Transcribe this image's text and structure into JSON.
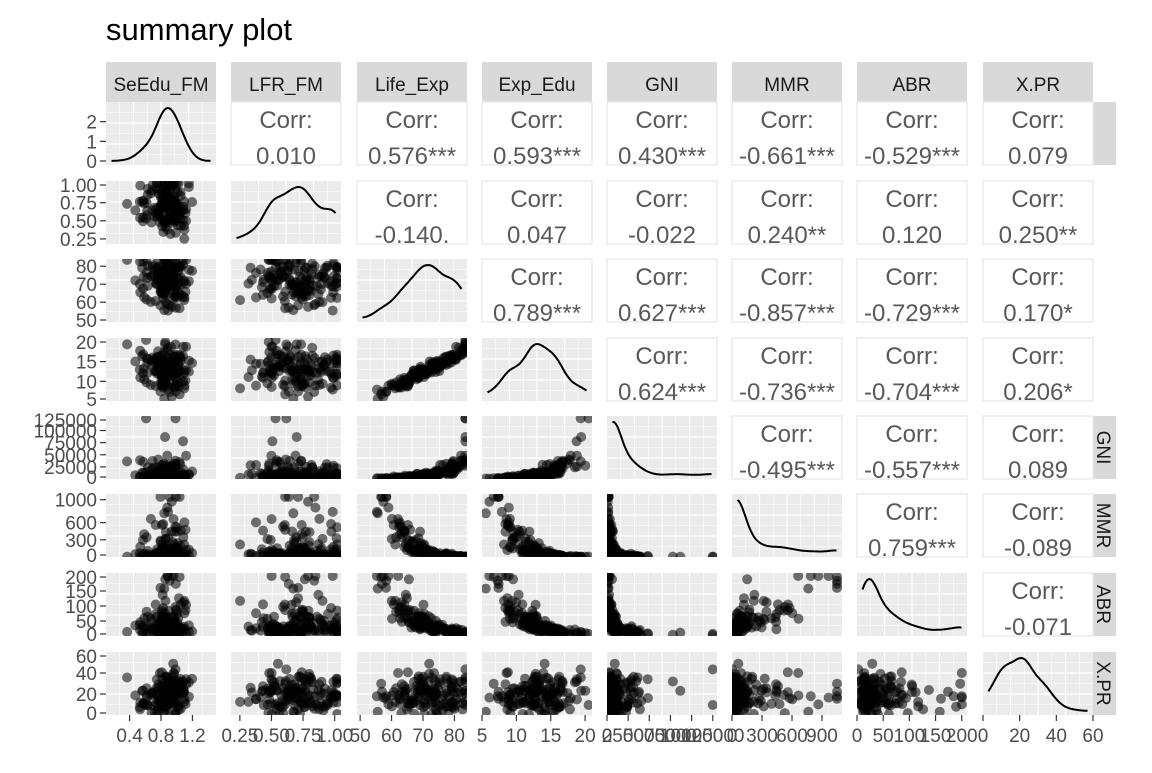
{
  "chart_data": {
    "type": "scatter-matrix",
    "title": "summary plot",
    "variables": [
      "SeEdu_FM",
      "LFR_FM",
      "Life_Exp",
      "Exp_Edu",
      "GNI",
      "MMR",
      "ABR",
      "X.PR"
    ],
    "row_strip_labels": [
      "SeEdu_FM",
      "LFR_FM",
      "Life_Exp",
      "Exp_Edu",
      "GNI",
      "MMR",
      "ABR",
      "X.PR"
    ],
    "correlation_label": "Corr:",
    "correlations": {
      "0_1": "0.010",
      "0_2": "0.576***",
      "0_3": "0.593***",
      "0_4": "0.430***",
      "0_5": "-0.661***",
      "0_6": "-0.529***",
      "0_7": "0.079",
      "1_2": "-0.140.",
      "1_3": "0.047",
      "1_4": "-0.022",
      "1_5": "0.240**",
      "1_6": "0.120",
      "1_7": "0.250**",
      "2_3": "0.789***",
      "2_4": "0.627***",
      "2_5": "-0.857***",
      "2_6": "-0.729***",
      "2_7": "0.170*",
      "3_4": "0.624***",
      "3_5": "-0.736***",
      "3_6": "-0.704***",
      "3_7": "0.206*",
      "4_5": "-0.495***",
      "4_6": "-0.557***",
      "4_7": "0.089",
      "5_6": "0.759***",
      "5_7": "-0.089",
      "6_7": "-0.071"
    },
    "y_ticks": [
      [
        "2",
        "1",
        "0"
      ],
      [
        "1.00",
        "0.75",
        "0.50",
        "0.25"
      ],
      [
        "80",
        "70",
        "60",
        "50"
      ],
      [
        "20",
        "15",
        "10",
        "5"
      ],
      [
        "125000",
        "100000",
        "75000",
        "50000",
        "25000",
        "0"
      ],
      [
        "1000",
        "600",
        "300",
        "0"
      ],
      [
        "200",
        "150",
        "100",
        "50",
        "0"
      ],
      [
        "60",
        "40",
        "20",
        "0"
      ]
    ],
    "x_ticks": [
      [
        "0.4",
        "0.8",
        "1.2"
      ],
      [
        "0.25",
        "0.50",
        "0.75",
        "1.00"
      ],
      [
        "50",
        "60",
        "70",
        "80"
      ],
      [
        "5",
        "10",
        "15",
        "20"
      ],
      [
        "0",
        "25000",
        "50000",
        "75000",
        "100000",
        "125000"
      ],
      [
        "0",
        "300",
        "600",
        "900"
      ],
      [
        "0",
        "50",
        "100",
        "150",
        "200"
      ],
      [
        "0",
        "20",
        "40",
        "60"
      ]
    ],
    "ranges": [
      [
        0.1,
        1.5
      ],
      [
        0.18,
        1.05
      ],
      [
        49,
        84
      ],
      [
        5,
        21
      ],
      [
        0,
        130000
      ],
      [
        0,
        1100
      ],
      [
        0,
        210
      ],
      [
        0,
        60
      ]
    ],
    "density_ylim": [
      0,
      3.0
    ],
    "density_ticks": [
      "2",
      "1",
      "0"
    ],
    "density_values": [
      0,
      1,
      2
    ]
  }
}
